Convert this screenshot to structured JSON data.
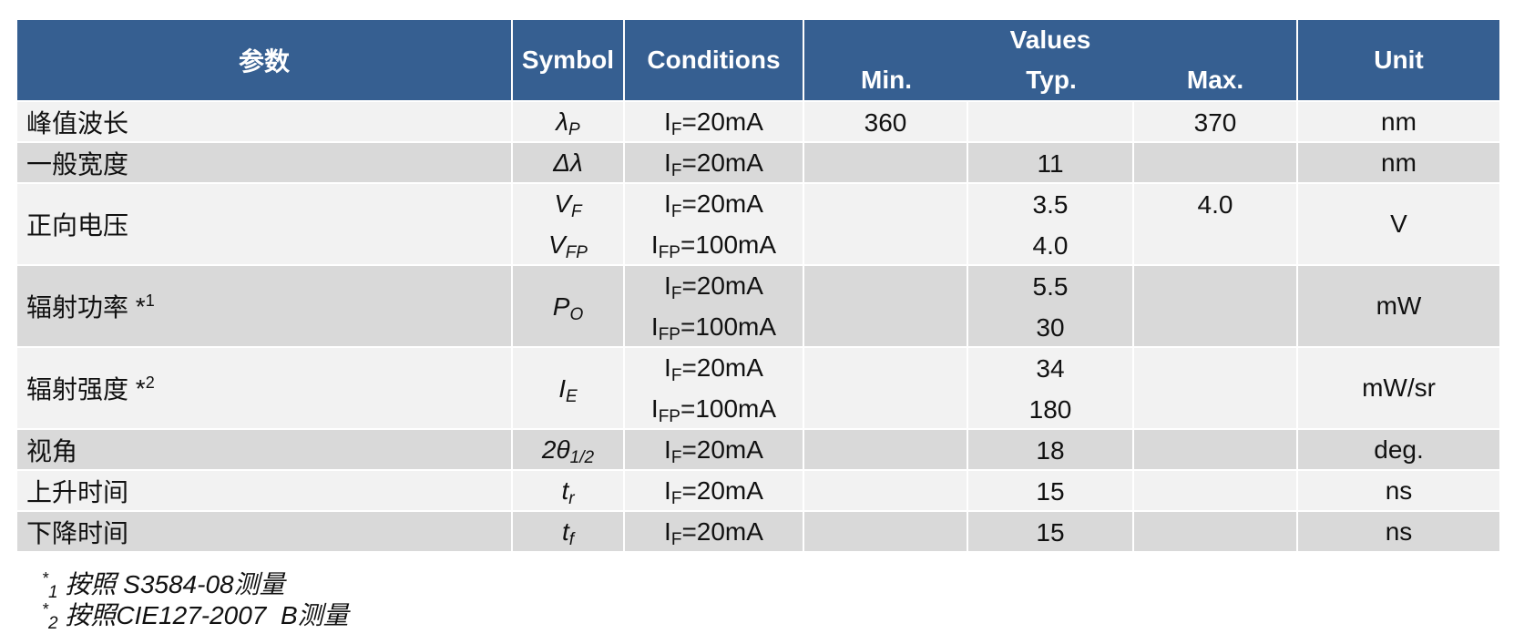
{
  "header": {
    "param": "参数",
    "symbol": "Symbol",
    "conditions": "Conditions",
    "values": "Values",
    "min": "Min.",
    "typ": "Typ.",
    "max": "Max.",
    "unit": "Unit"
  },
  "rows": [
    {
      "param": "峰值波长",
      "symbols": [
        {
          "base": "λ",
          "sub": "P"
        }
      ],
      "lines": [
        {
          "condition": {
            "base": "I",
            "sub": "F",
            "rest": "=20mA"
          },
          "min": "360",
          "max": "370"
        }
      ],
      "unit": "nm"
    },
    {
      "param": "一般宽度",
      "symbols": [
        {
          "base": "Δλ"
        }
      ],
      "lines": [
        {
          "condition": {
            "base": "I",
            "sub": "F",
            "rest": "=20mA"
          },
          "typ": "11"
        }
      ],
      "unit": "nm"
    },
    {
      "param": "正向电压",
      "symbols": [
        {
          "base": "V",
          "sub": "F"
        },
        {
          "base": "V",
          "sub": "FP"
        }
      ],
      "lines": [
        {
          "condition": {
            "base": "I",
            "sub": "F",
            "rest": "=20mA"
          },
          "typ": "3.5",
          "max": "4.0"
        },
        {
          "condition": {
            "base": "I",
            "sub": "FP",
            "rest": "=100mA"
          },
          "typ": "4.0"
        }
      ],
      "unit": "V"
    },
    {
      "param": "辐射功率",
      "note": {
        "mark": "*",
        "num": "1"
      },
      "symbols": [
        {
          "base": "P",
          "sub": "O"
        }
      ],
      "lines": [
        {
          "condition": {
            "base": "I",
            "sub": "F",
            "rest": "=20mA"
          },
          "typ": "5.5"
        },
        {
          "condition": {
            "base": "I",
            "sub": "FP",
            "rest": "=100mA"
          },
          "typ": "30"
        }
      ],
      "unit": "mW"
    },
    {
      "param": "辐射强度",
      "note": {
        "mark": "*",
        "num": "2"
      },
      "symbols": [
        {
          "base": "I",
          "sub": "E"
        }
      ],
      "lines": [
        {
          "condition": {
            "base": "I",
            "sub": "F",
            "rest": "=20mA"
          },
          "typ": "34"
        },
        {
          "condition": {
            "base": "I",
            "sub": "FP",
            "rest": "=100mA"
          },
          "typ": "180"
        }
      ],
      "unit": "mW/sr"
    },
    {
      "param": "视角",
      "symbols": [
        {
          "base": "2θ",
          "sub": "1/2"
        }
      ],
      "lines": [
        {
          "condition": {
            "base": "I",
            "sub": "F",
            "rest": "=20mA"
          },
          "typ": "18"
        }
      ],
      "unit": "deg."
    },
    {
      "param": "上升时间",
      "symbols": [
        {
          "base": "t",
          "sub": "r"
        }
      ],
      "lines": [
        {
          "condition": {
            "base": "I",
            "sub": "F",
            "rest": "=20mA"
          },
          "typ": "15"
        }
      ],
      "unit": "ns"
    },
    {
      "param": "下降时间",
      "symbols": [
        {
          "base": "t",
          "sub": "f"
        }
      ],
      "lines": [
        {
          "condition": {
            "base": "I",
            "sub": "F",
            "rest": "=20mA"
          },
          "typ": "15"
        }
      ],
      "unit": "ns"
    }
  ],
  "footnotes": [
    {
      "mark": "*",
      "num": "1",
      "text": "按照 S3584-08测量"
    },
    {
      "mark": "*",
      "num": "2",
      "text": "按照CIE127-2007  B测量"
    }
  ]
}
